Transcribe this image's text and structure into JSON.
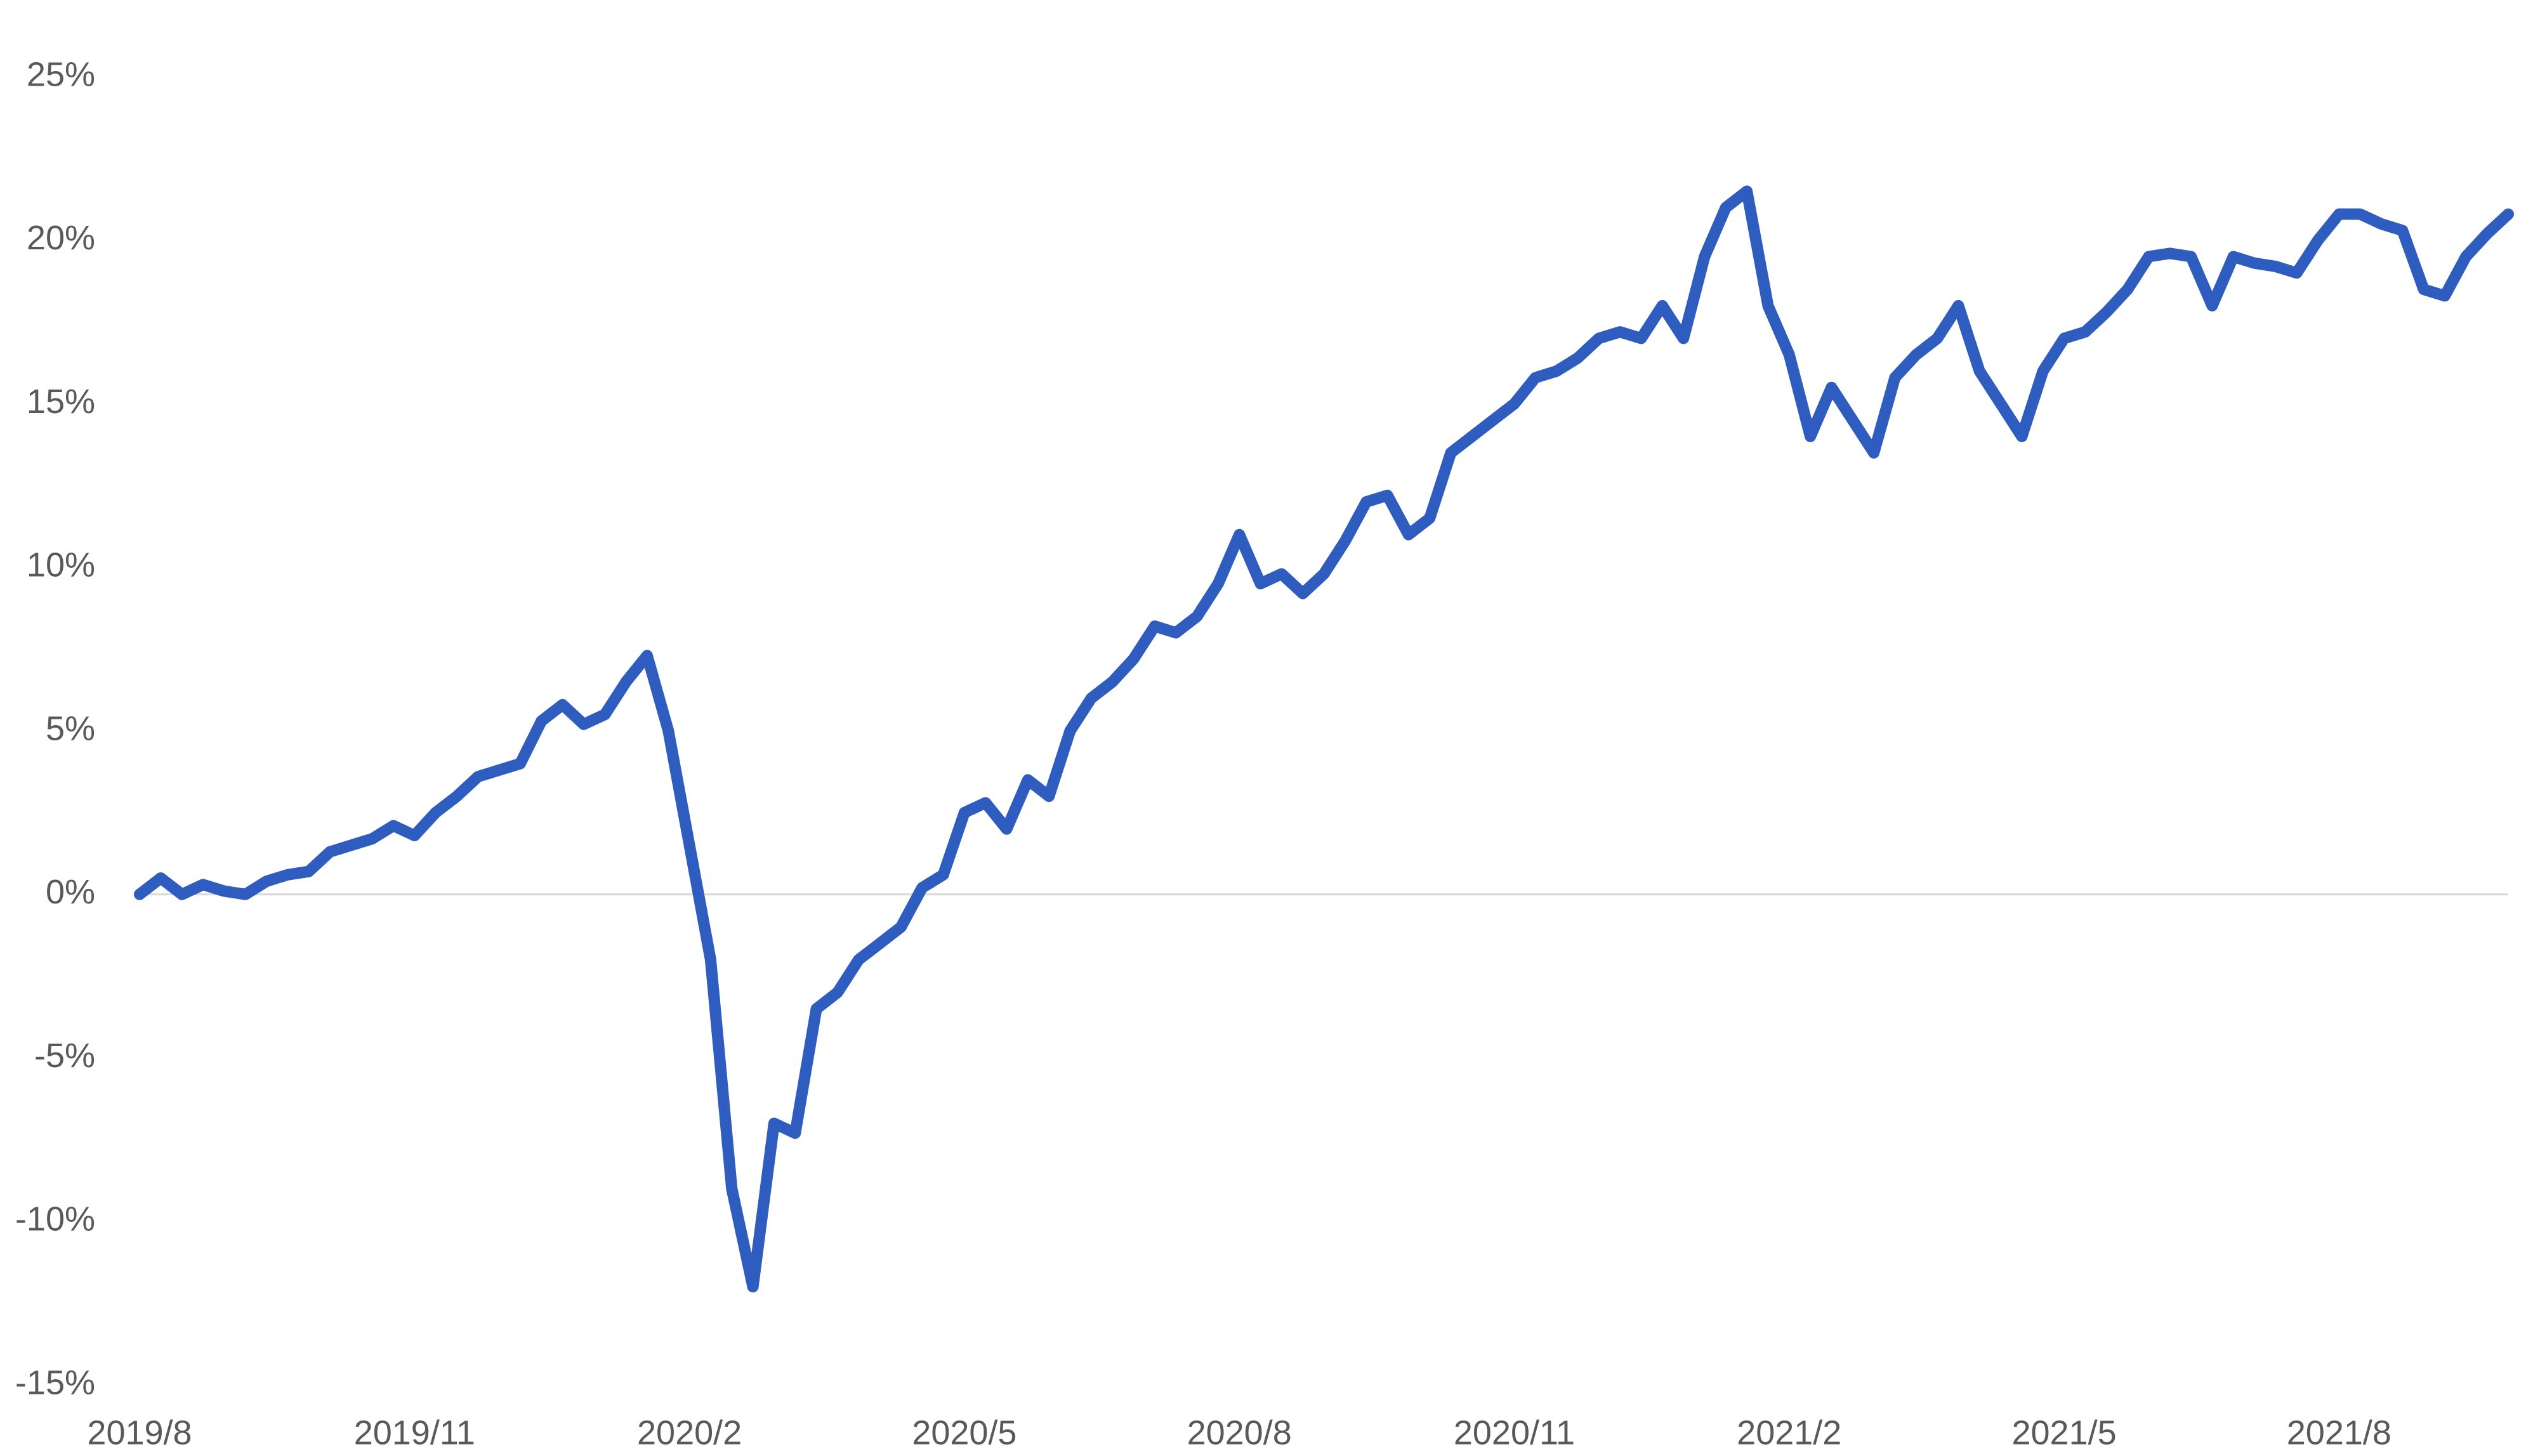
{
  "chart_data": {
    "type": "line",
    "categories": [
      "2019/8",
      null,
      null,
      null,
      null,
      null,
      null,
      null,
      null,
      null,
      null,
      null,
      null,
      "2019/11",
      null,
      null,
      null,
      null,
      null,
      null,
      null,
      null,
      null,
      null,
      null,
      null,
      "2020/2",
      null,
      null,
      null,
      null,
      null,
      null,
      null,
      null,
      null,
      null,
      null,
      null,
      "2020/5",
      null,
      null,
      null,
      null,
      null,
      null,
      null,
      null,
      null,
      null,
      null,
      null,
      "2020/8",
      null,
      null,
      null,
      null,
      null,
      null,
      null,
      null,
      null,
      null,
      null,
      null,
      "2020/11",
      null,
      null,
      null,
      null,
      null,
      null,
      null,
      null,
      null,
      null,
      null,
      null,
      "2021/2",
      null,
      null,
      null,
      null,
      null,
      null,
      null,
      null,
      null,
      null,
      null,
      null,
      "2021/5",
      null,
      null,
      null,
      null,
      null,
      null,
      null,
      null,
      null,
      null,
      null,
      null,
      "2021/8",
      null,
      null,
      null,
      null,
      null,
      null,
      null,
      null
    ],
    "series": [
      {
        "color": "#2e5cbf",
        "values": [
          0.0,
          0.5,
          0.0,
          0.3,
          0.1,
          0.0,
          0.4,
          0.6,
          0.7,
          1.3,
          1.5,
          1.7,
          2.1,
          1.8,
          2.5,
          3.0,
          3.6,
          3.8,
          4.0,
          5.3,
          5.8,
          5.2,
          5.5,
          6.5,
          7.3,
          5.0,
          1.5,
          -2.0,
          -9.0,
          -12.0,
          -7.0,
          -7.3,
          -3.5,
          -3.0,
          -2.0,
          -1.5,
          -1.0,
          0.2,
          0.6,
          2.5,
          2.8,
          2.0,
          3.5,
          3.0,
          5.0,
          6.0,
          6.5,
          7.2,
          8.2,
          8.0,
          8.5,
          9.5,
          11.0,
          9.5,
          9.8,
          9.2,
          9.8,
          10.8,
          12.0,
          12.2,
          11.0,
          11.5,
          13.5,
          14.0,
          14.5,
          15.0,
          15.8,
          16.0,
          16.4,
          17.0,
          17.2,
          17.0,
          18.0,
          17.0,
          19.5,
          21.0,
          21.5,
          18.0,
          16.5,
          14.0,
          15.5,
          14.5,
          13.5,
          15.8,
          16.5,
          17.0,
          18.0,
          16.0,
          15.0,
          14.0,
          16.0,
          17.0,
          17.2,
          17.8,
          18.5,
          19.5,
          19.6,
          19.5,
          18.0,
          19.5,
          19.3,
          19.2,
          19.0,
          20.0,
          20.8,
          20.8,
          20.5,
          20.3,
          18.5,
          18.3,
          19.5,
          20.2,
          20.8
        ]
      }
    ],
    "ylim": [
      -15,
      25
    ],
    "yticks": [
      {
        "value": -15,
        "label": "-15%"
      },
      {
        "value": -10,
        "label": "-10%"
      },
      {
        "value": -5,
        "label": "-5%"
      },
      {
        "value": 0,
        "label": "0%"
      },
      {
        "value": 5,
        "label": "5%"
      },
      {
        "value": 10,
        "label": "10%"
      },
      {
        "value": 15,
        "label": "15%"
      },
      {
        "value": 20,
        "label": "20%"
      },
      {
        "value": 25,
        "label": "25%"
      }
    ],
    "zero_line": true,
    "grid": false
  }
}
